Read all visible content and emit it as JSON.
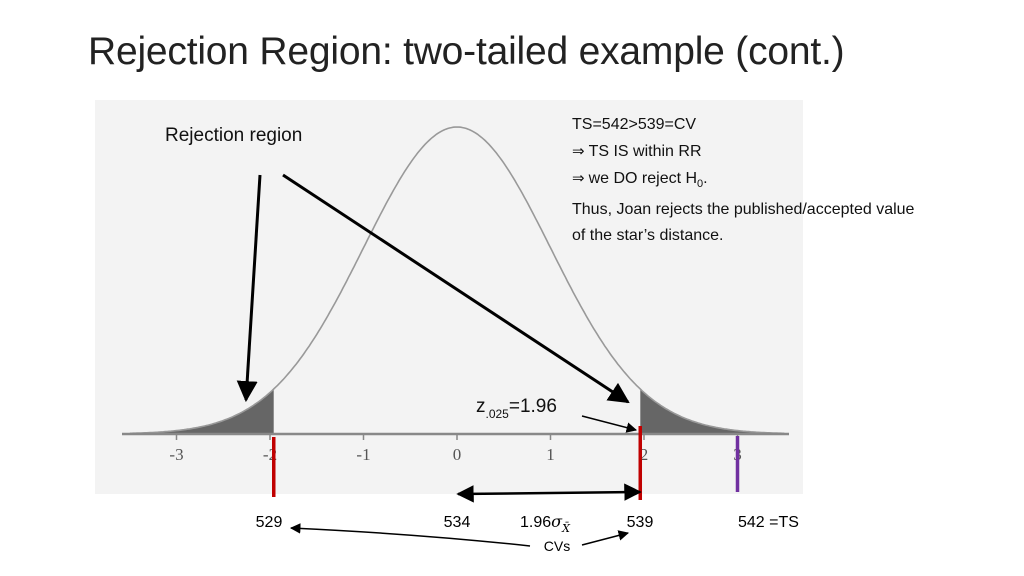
{
  "title": "Rejection Region: two-tailed example (cont.)",
  "rejection_label": "Rejection region",
  "z_label": {
    "main": "z",
    "sub": ".025",
    "rest": "=1.96"
  },
  "ts_note": {
    "line1": "TS=542>539=CV",
    "line2": "TS IS within RR",
    "line3_pre": "we DO reject H",
    "line3_sub": "0",
    "line3_post": ".",
    "line4": "Thus, Joan rejects the published/accepted value",
    "line5": "of the star’s distance.",
    "implies_symbol": "⇒"
  },
  "bottom_labels": {
    "v529": "529",
    "v534": "534",
    "sigma_coef": "1.96",
    "sigma": "σ",
    "sigma_sub": "X̄",
    "v539": "539",
    "v542": "542 =TS",
    "cvs": "CVs"
  },
  "chart_data": {
    "type": "area",
    "curve": "standard normal density",
    "xlim": [
      -3.5,
      3.5
    ],
    "x_ticks": [
      -3,
      -2,
      -1,
      0,
      1,
      2,
      3
    ],
    "tick_labels": [
      "-3",
      "-2",
      "-1",
      "0",
      "1",
      "2",
      "3"
    ],
    "shaded_tails": {
      "left_upper": -1.96,
      "right_lower": 1.96
    },
    "markers": [
      {
        "z": -1.96,
        "value": 529,
        "color": "#c00000"
      },
      {
        "z": 1.96,
        "value": 539,
        "color": "#c00000"
      },
      {
        "z": 3.0,
        "value": 542,
        "color": "#7030a0"
      }
    ],
    "colors": {
      "panel": "#f3f3f3",
      "curve": "#999999",
      "tail_fill": "#666666",
      "axis": "#888888"
    }
  }
}
